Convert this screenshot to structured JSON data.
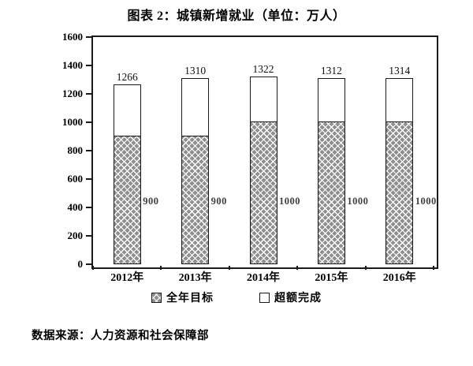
{
  "title": "图表 2：城镇新增就业（单位：万人）",
  "source_note": "数据来源：人力资源和社会保障部",
  "chart_data": {
    "type": "bar",
    "stacked": true,
    "title": "图表 2：城镇新增就业（单位：万人）",
    "categories": [
      "2012年",
      "2013年",
      "2014年",
      "2015年",
      "2016年"
    ],
    "series": [
      {
        "name": "全年目标",
        "pattern": "diagonal-crosshatch",
        "fill": "#8f8f8f",
        "values": [
          900,
          900,
          1000,
          1000,
          1000
        ]
      },
      {
        "name": "超额完成",
        "pattern": "none",
        "fill": "#ffffff",
        "values": [
          366,
          410,
          322,
          312,
          314
        ]
      }
    ],
    "stack_total_labels": [
      "1266",
      "1310",
      "1322",
      "1312",
      "1314"
    ],
    "series_inline_labels": [
      "900",
      "900",
      "1000",
      "1000",
      "1000"
    ],
    "ylim": [
      0,
      1600
    ],
    "yticks": [
      0,
      200,
      400,
      600,
      800,
      1000,
      1200,
      1400,
      1600
    ],
    "grid": false,
    "legend_position": "bottom",
    "axis_color": "#1a1a1a",
    "bar_border_color": "#1a1a1a"
  }
}
